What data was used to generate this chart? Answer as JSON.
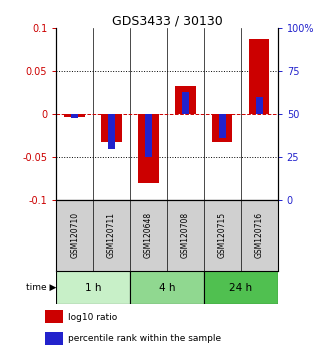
{
  "title": "GDS3433 / 30130",
  "samples": [
    "GSM120710",
    "GSM120711",
    "GSM120648",
    "GSM120708",
    "GSM120715",
    "GSM120716"
  ],
  "log10_ratio": [
    -0.003,
    -0.032,
    -0.08,
    0.033,
    -0.033,
    0.088
  ],
  "percentile_rank_raw": [
    48,
    30,
    25,
    63,
    36,
    60
  ],
  "time_groups": [
    {
      "label": "1 h",
      "start": 0,
      "end": 2,
      "color": "#c8f0c8"
    },
    {
      "label": "4 h",
      "start": 2,
      "end": 4,
      "color": "#90d890"
    },
    {
      "label": "24 h",
      "start": 4,
      "end": 6,
      "color": "#50c050"
    }
  ],
  "ylim_left": [
    -0.1,
    0.1
  ],
  "ylim_right": [
    0,
    100
  ],
  "left_ticks": [
    -0.1,
    -0.05,
    0,
    0.05,
    0.1
  ],
  "right_ticks": [
    0,
    25,
    50,
    75,
    100
  ],
  "left_tick_labels": [
    "-0.1",
    "-0.05",
    "0",
    "0.05",
    "0.1"
  ],
  "right_tick_labels": [
    "0",
    "25",
    "50",
    "75",
    "100%"
  ],
  "red_color": "#cc0000",
  "blue_color": "#2222cc",
  "bg_color": "#ffffff",
  "sample_box_color": "#d0d0d0",
  "legend_red": "log10 ratio",
  "legend_blue": "percentile rank within the sample",
  "time_label": "time"
}
